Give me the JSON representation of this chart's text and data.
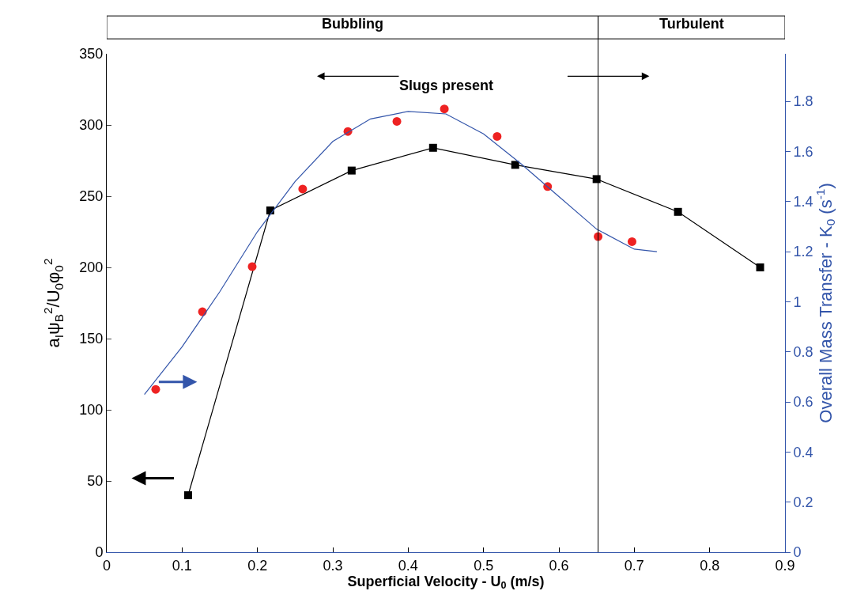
{
  "chart_data": {
    "type": "line",
    "xlabel": "Superficial Velocity - U$_{0}$ (m/s)",
    "ylabel": "a$_{I}$ψ$_{B}$$^{2}$/U$_{0}$φ$_{0}$$^{2}$",
    "y2label": "Overall Mass Transfer - K$_{0}$ (s$^{-1}$)",
    "annotations": [
      "Slugs present",
      "Bubbling",
      "Turbulent"
    ],
    "xlim": [
      0,
      0.9
    ],
    "xticks": [
      0,
      0.1,
      0.2,
      0.3,
      0.4,
      0.5,
      0.6,
      0.7,
      0.8,
      0.9
    ],
    "ylim": [
      0,
      350
    ],
    "yticks": [
      0,
      50,
      100,
      150,
      200,
      250,
      300,
      350
    ],
    "y2lim": [
      0,
      1.99
    ],
    "y2ticks": [
      0,
      0.2,
      0.4,
      0.6,
      0.8,
      1,
      1.2,
      1.4,
      1.6,
      1.8
    ],
    "series": [
      {
        "type": "line",
        "marker": "square",
        "color": "#000000",
        "x": [
          0.108,
          0.217,
          0.325,
          0.433,
          0.542,
          0.65,
          0.758,
          0.867
        ],
        "values": [
          40,
          240,
          268,
          284,
          272,
          262,
          239,
          200
        ]
      },
      {
        "type": "scatter",
        "marker": "circle",
        "axis": "y2",
        "color": "#ee2222",
        "x": [
          0.065,
          0.127,
          0.193,
          0.26,
          0.32,
          0.385,
          0.448,
          0.518,
          0.585,
          0.652,
          0.697
        ],
        "values": [
          0.65,
          0.96,
          1.14,
          1.45,
          1.68,
          1.72,
          1.77,
          1.66,
          1.46,
          1.26,
          1.24
        ]
      },
      {
        "marker": "none",
        "axis": "y2",
        "color": "#3355aa",
        "x": [
          0.05,
          0.1,
          0.15,
          0.2,
          0.25,
          0.3,
          0.35,
          0.4,
          0.45,
          0.5,
          0.55,
          0.6,
          0.65,
          0.7,
          0.73
        ],
        "values": [
          0.63,
          0.82,
          1.04,
          1.28,
          1.48,
          1.64,
          1.73,
          1.76,
          1.75,
          1.67,
          1.55,
          1.42,
          1.29,
          1.21,
          1.2
        ]
      }
    ],
    "ref_lines": [
      {
        "axis": "x",
        "value": 0.652,
        "color": "#000000"
      }
    ],
    "grid": false,
    "legend": false
  }
}
